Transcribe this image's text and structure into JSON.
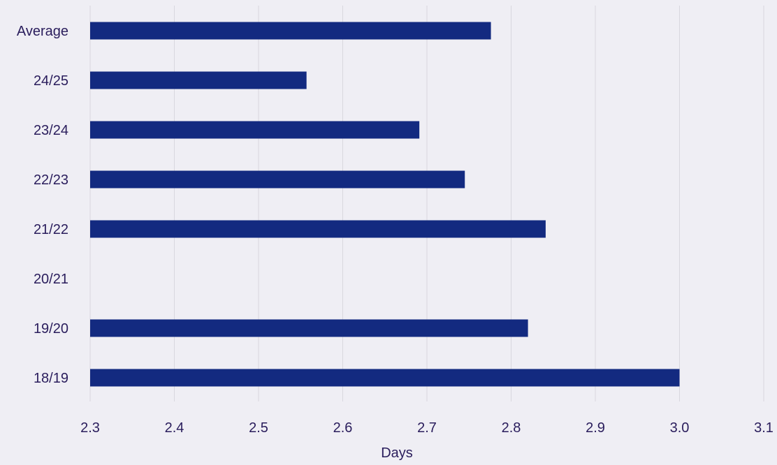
{
  "chart_data": {
    "type": "bar",
    "orientation": "horizontal",
    "categories": [
      "Average",
      "24/25",
      "23/24",
      "22/23",
      "21/22",
      "20/21",
      "19/20",
      "18/19"
    ],
    "values": [
      2.776,
      2.557,
      2.691,
      2.745,
      2.841,
      null,
      2.82,
      3.0
    ],
    "title": "",
    "xlabel": "Days",
    "ylabel": "",
    "xlim": [
      2.3,
      3.1
    ],
    "x_ticks": [
      "2.3",
      "2.4",
      "2.5",
      "2.6",
      "2.7",
      "2.8",
      "2.9",
      "3.0",
      "3.1"
    ],
    "grid": "vertical",
    "legend": "none",
    "colors": {
      "bar": "#132a80",
      "grid": "#d8d7de",
      "text": "#2a1d5c",
      "background": "#efeef4"
    }
  }
}
